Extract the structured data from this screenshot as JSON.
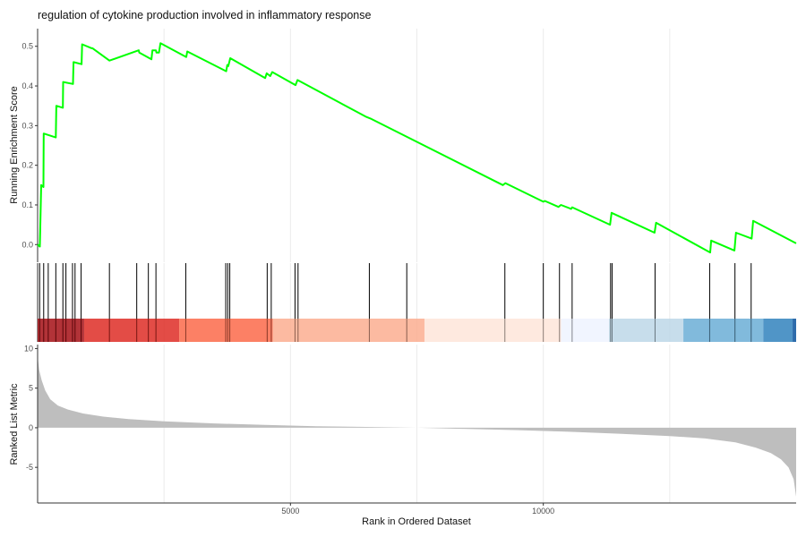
{
  "chart_data": {
    "type": "line",
    "title": "regulation of cytokine production involved in inflammatory response",
    "xlabel": "Rank in Ordered Dataset",
    "x_range": [
      0,
      15000
    ],
    "x_ticks": [
      5000,
      10000
    ],
    "x_tick_labels": [
      "5000",
      "10000"
    ],
    "grid": "vertical major gridlines",
    "line_color": "#00ff00",
    "panels": {
      "running_score": {
        "ylabel": "Running Enrichment Score",
        "ylim": [
          -0.04,
          0.54
        ],
        "y_ticks": [
          0.0,
          0.1,
          0.2,
          0.3,
          0.4,
          0.5
        ],
        "y_tick_labels": [
          "0.0",
          "0.1",
          "0.2",
          "0.3",
          "0.4",
          "0.5"
        ],
        "series": [
          {
            "x": [
              0,
              45,
              70,
              115,
              120,
              360,
              370,
              500,
              505,
              700,
              710,
              870,
              880,
              1070,
              1085,
              1420,
              2000,
              2010,
              2250,
              2270,
              2340,
              2350,
              2400,
              2430,
              2940,
              2960,
              3730,
              3750,
              3770,
              3810,
              4500,
              4530,
              4600,
              4640,
              5100,
              5140,
              6500,
              6580,
              9200,
              9250,
              10000,
              10030,
              10300,
              10350,
              10550,
              10570,
              11320,
              11350,
              12200,
              12230,
              13300,
              13320,
              13780,
              13810,
              14120,
              14150,
              15000
            ],
            "y": [
              0.0,
              -0.005,
              0.15,
              0.145,
              0.28,
              0.27,
              0.35,
              0.345,
              0.41,
              0.405,
              0.46,
              0.455,
              0.505,
              0.495,
              0.495,
              0.464,
              0.49,
              0.484,
              0.467,
              0.49,
              0.49,
              0.484,
              0.484,
              0.508,
              0.473,
              0.487,
              0.437,
              0.453,
              0.45,
              0.47,
              0.42,
              0.432,
              0.425,
              0.435,
              0.402,
              0.415,
              0.322,
              0.318,
              0.15,
              0.155,
              0.108,
              0.11,
              0.095,
              0.1,
              0.09,
              0.094,
              0.05,
              0.08,
              0.03,
              0.055,
              -0.02,
              0.01,
              -0.015,
              0.03,
              0.015,
              0.06,
              0.003
            ]
          }
        ]
      },
      "gene_hits": {
        "ranks": [
          40,
          120,
          210,
          360,
          500,
          560,
          690,
          740,
          860,
          1420,
          1960,
          2190,
          2340,
          2930,
          3720,
          3760,
          3800,
          4540,
          4620,
          5090,
          5150,
          6560,
          7300,
          9240,
          10000,
          10320,
          10570,
          11330,
          11360,
          12210,
          13290,
          13790,
          14110
        ]
      },
      "color_bar": {
        "segments": [
          {
            "start": 0,
            "end": 920,
            "color": "#a50f15"
          },
          {
            "start": 920,
            "end": 2800,
            "color": "#de2d26"
          },
          {
            "start": 2800,
            "end": 4650,
            "color": "#fb6a4a"
          },
          {
            "start": 4650,
            "end": 7650,
            "color": "#fcae91"
          },
          {
            "start": 7650,
            "end": 10350,
            "color": "#fee5d9"
          },
          {
            "start": 10350,
            "end": 11300,
            "color": "#eff3ff"
          },
          {
            "start": 11300,
            "end": 12770,
            "color": "#bdd7e7"
          },
          {
            "start": 12770,
            "end": 14350,
            "color": "#6baed6"
          },
          {
            "start": 14350,
            "end": 14930,
            "color": "#3182bd"
          },
          {
            "start": 14930,
            "end": 15000,
            "color": "#08519c"
          }
        ]
      },
      "ranked_metric": {
        "ylabel": "Ranked List Metric",
        "ylim": [
          -9.5,
          10.5
        ],
        "y_ticks": [
          10,
          5,
          0,
          -5
        ],
        "y_tick_labels": [
          "10",
          "5",
          "0",
          "-5"
        ],
        "fill_color": "#bebebe",
        "x": [
          0,
          30,
          80,
          150,
          250,
          400,
          600,
          900,
          1300,
          1800,
          2500,
          3500,
          4500,
          5500,
          6500,
          7500,
          8500,
          9500,
          10500,
          11500,
          12500,
          13200,
          13800,
          14200,
          14500,
          14700,
          14850,
          14950,
          15000
        ],
        "y": [
          9.0,
          7.3,
          6.0,
          4.7,
          3.6,
          2.8,
          2.3,
          1.8,
          1.4,
          1.1,
          0.8,
          0.55,
          0.35,
          0.2,
          0.1,
          0.0,
          -0.15,
          -0.3,
          -0.5,
          -0.75,
          -1.05,
          -1.35,
          -1.85,
          -2.5,
          -3.2,
          -4.0,
          -5.0,
          -6.5,
          -8.7
        ]
      }
    }
  }
}
